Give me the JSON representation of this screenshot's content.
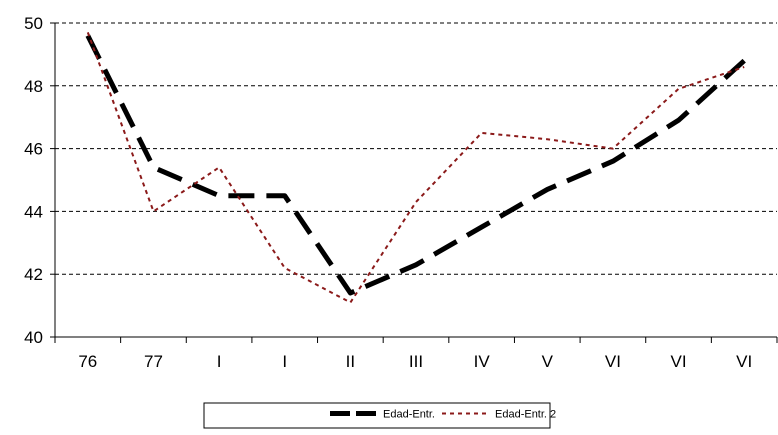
{
  "chart_data": {
    "type": "line",
    "categories": [
      "76",
      "77",
      "I",
      "I",
      "II",
      "III",
      "IV",
      "V",
      "VI",
      "VI",
      "VI"
    ],
    "series": [
      {
        "name": "Edad-Entr.",
        "values": [
          49.6,
          45.4,
          44.5,
          44.5,
          41.4,
          42.3,
          43.5,
          44.7,
          45.6,
          46.9,
          48.8
        ],
        "color": "#000000",
        "style": "long-dash-thick"
      },
      {
        "name": "Edad-Entr. 2",
        "values": [
          49.7,
          44.0,
          45.4,
          42.2,
          41.1,
          44.3,
          46.5,
          46.3,
          46.0,
          47.9,
          48.6
        ],
        "color": "#8b1a1a",
        "style": "dotted"
      }
    ],
    "ylim": [
      40,
      50
    ],
    "yticks": [
      "40",
      "42",
      "44",
      "46",
      "48",
      "50"
    ],
    "grid": "horizontal-dashed",
    "legend_position": "bottom"
  }
}
